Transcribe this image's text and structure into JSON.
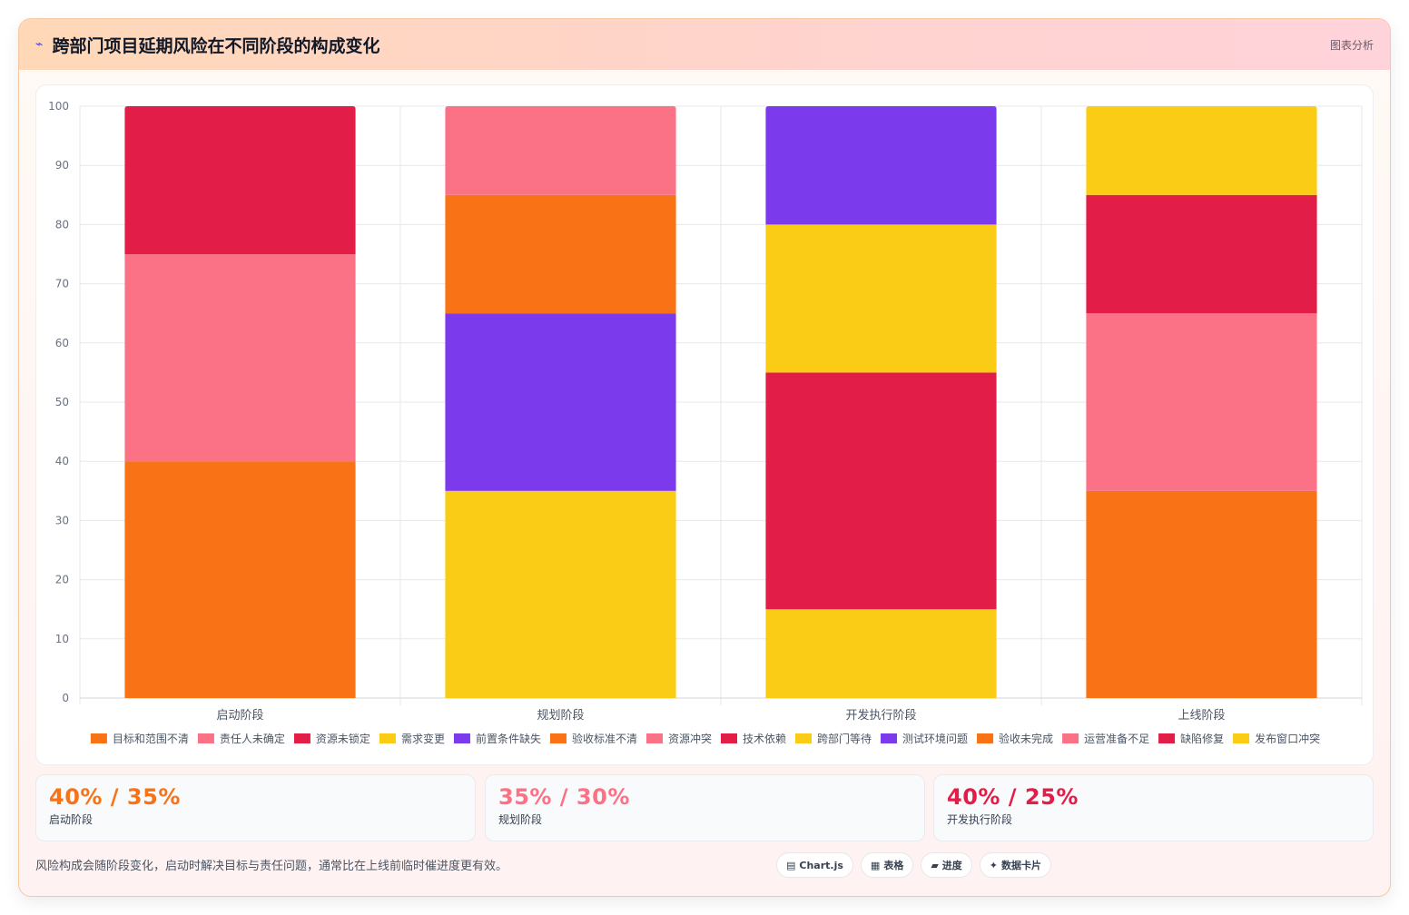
{
  "header": {
    "icon": "chart-line-icon",
    "title": "跨部门项目延期风险在不同阶段的构成变化",
    "tag": "图表分析"
  },
  "chart_data": {
    "type": "bar",
    "stacked": true,
    "categories": [
      "启动阶段",
      "规划阶段",
      "开发执行阶段",
      "上线阶段"
    ],
    "ylim": [
      0,
      100
    ],
    "yticks": [
      0,
      10,
      20,
      30,
      40,
      50,
      60,
      70,
      80,
      90,
      100
    ],
    "legend_position": "bottom",
    "grid": true,
    "series": [
      {
        "name": "目标和范围不清",
        "color": "#f97316",
        "values": [
          40,
          0,
          0,
          0
        ]
      },
      {
        "name": "责任人未确定",
        "color": "#fb7185",
        "values": [
          35,
          0,
          0,
          0
        ]
      },
      {
        "name": "资源未锁定",
        "color": "#e11d48",
        "values": [
          25,
          0,
          0,
          0
        ]
      },
      {
        "name": "需求变更",
        "color": "#facc15",
        "values": [
          0,
          35,
          0,
          0
        ]
      },
      {
        "name": "前置条件缺失",
        "color": "#7c3aed",
        "values": [
          0,
          30,
          0,
          0
        ]
      },
      {
        "name": "验收标准不清",
        "color": "#f97316",
        "values": [
          0,
          20,
          0,
          0
        ]
      },
      {
        "name": "资源冲突",
        "color": "#fb7185",
        "values": [
          0,
          15,
          0,
          0
        ]
      },
      {
        "name": "技术依赖",
        "color": "#e11d48",
        "values": [
          0,
          0,
          40,
          0
        ]
      },
      {
        "name": "跨部门等待",
        "color": "#facc15",
        "values": [
          0,
          0,
          25,
          0
        ]
      },
      {
        "name": "测试环境问题",
        "color": "#7c3aed",
        "values": [
          0,
          0,
          20,
          0
        ]
      },
      {
        "name": "验收未完成",
        "color": "#f97316",
        "values": [
          0,
          0,
          0,
          35
        ]
      },
      {
        "name": "运营准备不足",
        "color": "#fb7185",
        "values": [
          0,
          0,
          0,
          30
        ]
      },
      {
        "name": "缺陷修复",
        "color": "#e11d48",
        "values": [
          0,
          0,
          0,
          20
        ]
      },
      {
        "name": "发布窗口冲突",
        "color": "#facc15",
        "values": [
          0,
          0,
          0,
          15
        ]
      }
    ],
    "bottom_segments": [
      {
        "category": 2,
        "name": "跨部门等待",
        "value": 15
      }
    ]
  },
  "stats": [
    {
      "value": "40% / 35%",
      "label": "启动阶段",
      "color": "#f97316"
    },
    {
      "value": "35% / 30%",
      "label": "规划阶段",
      "color": "#fb7185"
    },
    {
      "value": "40% / 25%",
      "label": "开发执行阶段",
      "color": "#e11d48"
    }
  ],
  "footer": {
    "note": "风险构成会随阶段变化，启动时解决目标与责任问题，通常比在上线前临时催进度更有效。",
    "pills": [
      {
        "icon": "▤",
        "label": "Chart.js"
      },
      {
        "icon": "▦",
        "label": "表格"
      },
      {
        "icon": "▰",
        "label": "进度"
      },
      {
        "icon": "✦",
        "label": "数据卡片"
      }
    ]
  }
}
